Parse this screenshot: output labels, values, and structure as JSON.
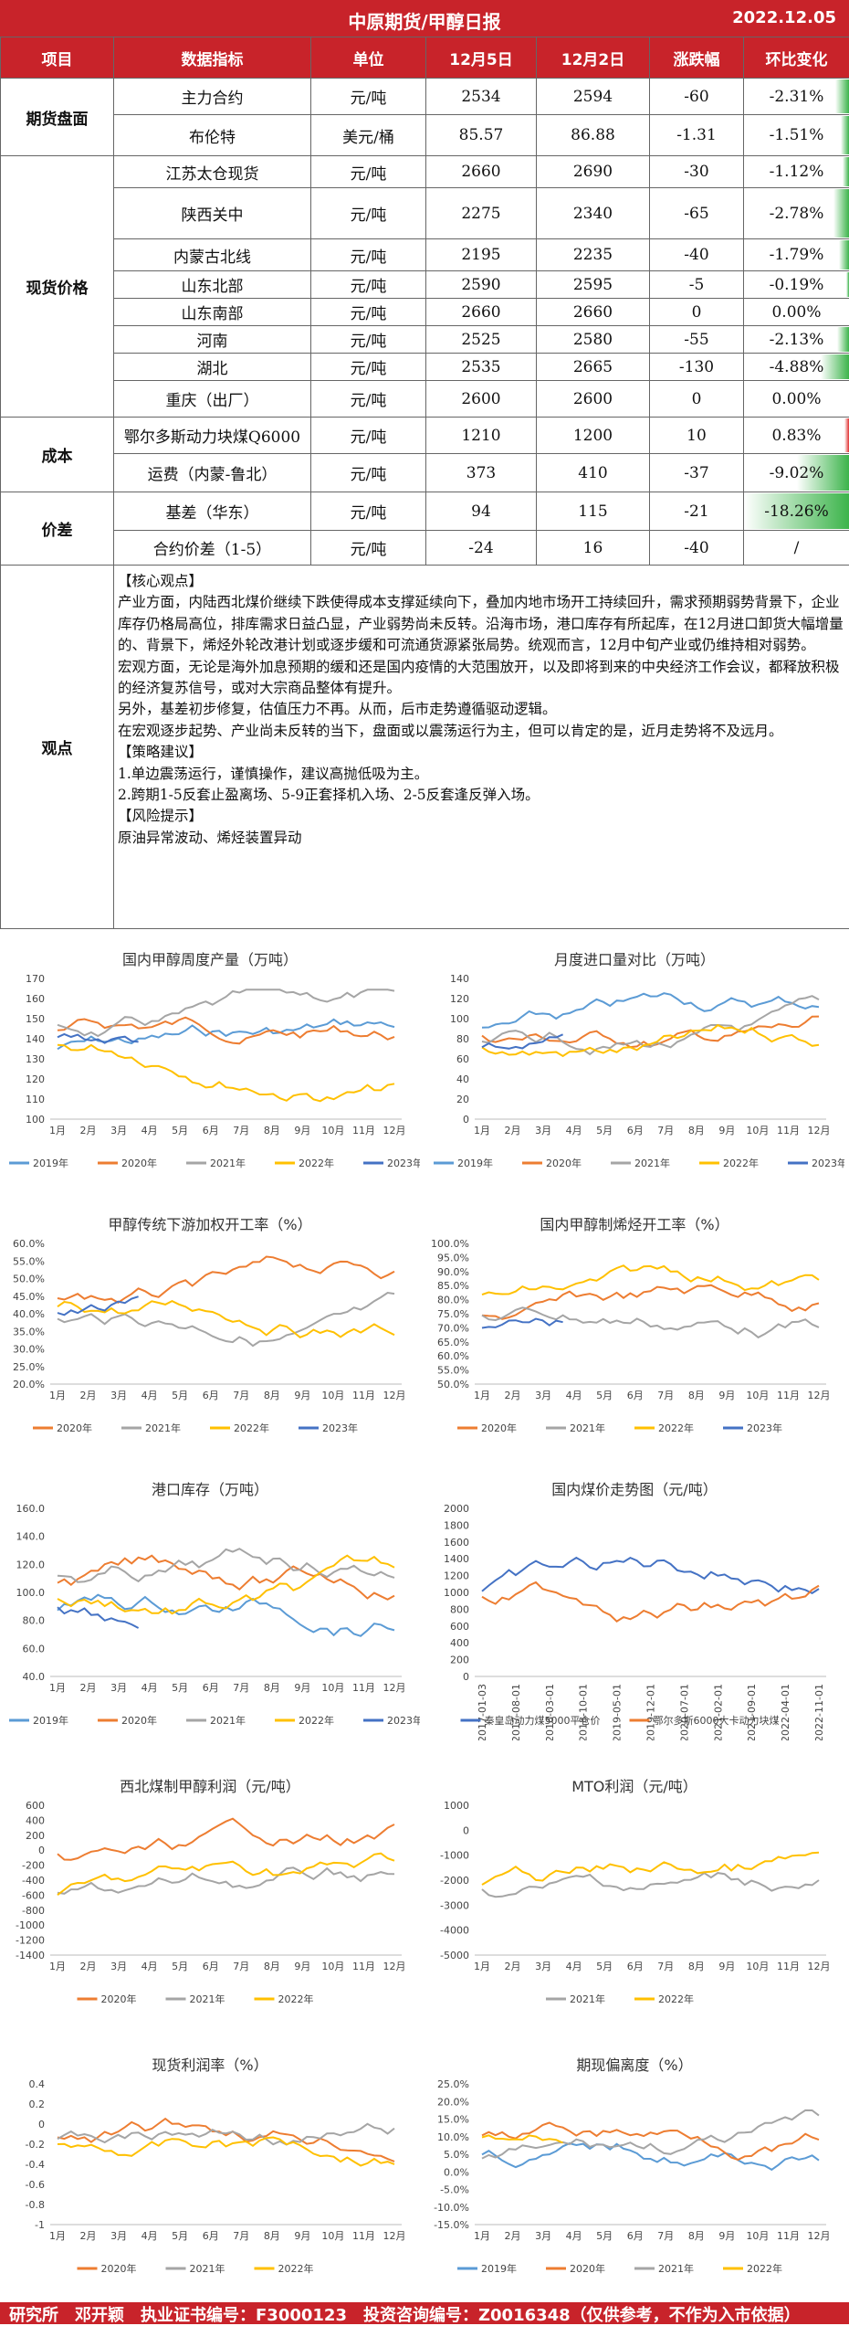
{
  "header": {
    "title": "中原期货/甲醇日报",
    "date": "2022.12.05"
  },
  "table": {
    "columns": [
      "项目",
      "数据指标",
      "单位",
      "12月5日",
      "12月2日",
      "涨跌幅",
      "环比变化"
    ],
    "rows": [
      {
        "metric": "主力合约",
        "unit": "元/吨",
        "d1": "2534",
        "d2": "2594",
        "chg": "-60",
        "pct": "-2.31%",
        "pctv": -2.31
      },
      {
        "metric": "布伦特",
        "unit": "美元/桶",
        "d1": "85.57",
        "d2": "86.88",
        "chg": "-1.31",
        "pct": "-1.51%",
        "pctv": -1.51
      },
      {
        "metric": "江苏太仓现货",
        "unit": "元/吨",
        "d1": "2660",
        "d2": "2690",
        "chg": "-30",
        "pct": "-1.12%",
        "pctv": -1.12
      },
      {
        "metric": "陕西关中",
        "unit": "元/吨",
        "d1": "2275",
        "d2": "2340",
        "chg": "-65",
        "pct": "-2.78%",
        "pctv": -2.78
      },
      {
        "metric": "内蒙古北线",
        "unit": "元/吨",
        "d1": "2195",
        "d2": "2235",
        "chg": "-40",
        "pct": "-1.79%",
        "pctv": -1.79
      },
      {
        "metric": "山东北部",
        "unit": "元/吨",
        "d1": "2590",
        "d2": "2595",
        "chg": "-5",
        "pct": "-0.19%",
        "pctv": -0.19
      },
      {
        "metric": "山东南部",
        "unit": "元/吨",
        "d1": "2660",
        "d2": "2660",
        "chg": "0",
        "pct": "0.00%",
        "pctv": 0
      },
      {
        "metric": "河南",
        "unit": "元/吨",
        "d1": "2525",
        "d2": "2580",
        "chg": "-55",
        "pct": "-2.13%",
        "pctv": -2.13
      },
      {
        "metric": "湖北",
        "unit": "元/吨",
        "d1": "2535",
        "d2": "2665",
        "chg": "-130",
        "pct": "-4.88%",
        "pctv": -4.88
      },
      {
        "metric": "重庆（出厂）",
        "unit": "元/吨",
        "d1": "2600",
        "d2": "2600",
        "chg": "0",
        "pct": "0.00%",
        "pctv": 0
      },
      {
        "metric": "鄂尔多斯动力块煤Q6000",
        "unit": "元/吨",
        "d1": "1210",
        "d2": "1200",
        "chg": "10",
        "pct": "0.83%",
        "pctv": 0.83
      },
      {
        "metric": "运费（内蒙-鲁北）",
        "unit": "元/吨",
        "d1": "373",
        "d2": "410",
        "chg": "-37",
        "pct": "-9.02%",
        "pctv": -9.02
      },
      {
        "metric": "基差（华东）",
        "unit": "元/吨",
        "d1": "94",
        "d2": "115",
        "chg": "-21",
        "pct": "-18.26%",
        "pctv": -18.26
      },
      {
        "metric": "合约价差（1-5）",
        "unit": "元/吨",
        "d1": "-24",
        "d2": "16",
        "chg": "-40",
        "pct": "/",
        "pctv": 0
      }
    ],
    "categories": {
      "futures": "期货盘面",
      "spot": "现货价格",
      "cost": "成本",
      "spread": "价差",
      "view": "观点"
    }
  },
  "view": {
    "lines": [
      "【核心观点】",
      "产业方面，内陆西北煤价继续下跌使得成本支撑延续向下，叠加内地市场开工持续回升，需求预期弱势背景下，企业库存仍格局高位，排库需求日益凸显，产业弱势尚未反转。沿海市场，港口库存有所起库，在12月进口卸货大幅增量的、背景下，烯烃外轮改港计划或逐步缓和可流通货源紧张局势。统观而言，12月中旬产业或仍维持相对弱势。",
      "宏观方面，无论是海外加息预期的缓和还是国内疫情的大范围放开，以及即将到来的中央经济工作会议，都释放积极的经济复苏信号，或对大宗商品整体有提升。",
      "另外，基差初步修复，估值压力不再。从而，后市走势遵循驱动逻辑。",
      "在宏观逐步起势、产业尚未反转的当下，盘面或以震荡运行为主，但可以肯定的是，近月走势将不及远月。",
      "【策略建议】",
      "1.单边震荡运行，谨慎操作，建议高抛低吸为主。",
      "2.跨期1-5反套止盈离场、5-9正套择机入场、2-5反套逢反弹入场。",
      "【风险提示】",
      "原油异常波动、烯烃装置异动"
    ]
  },
  "charts": [
    {
      "title": "国内甲醇周度产量（万吨）",
      "yticks": [
        "170",
        "160",
        "150",
        "140",
        "130",
        "120",
        "110",
        "100"
      ],
      "legend": [
        "2019年",
        "2020年",
        "2021年",
        "2022年",
        "2023年"
      ],
      "months": [
        "1月",
        "2月",
        "3月",
        "4月",
        "5月",
        "6月",
        "7月",
        "8月",
        "9月",
        "10月",
        "11月",
        "12月"
      ]
    },
    {
      "title": "月度进口量对比（万吨）",
      "yticks": [
        "140",
        "120",
        "100",
        "80",
        "60",
        "40",
        "20",
        "0"
      ],
      "legend": [
        "2019年",
        "2020年",
        "2021年",
        "2022年",
        "2023年"
      ],
      "months": [
        "1月",
        "2月",
        "3月",
        "4月",
        "5月",
        "6月",
        "7月",
        "8月",
        "9月",
        "10月",
        "11月",
        "12月"
      ]
    },
    {
      "title": "甲醇传统下游加权开工率（%）",
      "yticks": [
        "60.0%",
        "55.0%",
        "50.0%",
        "45.0%",
        "40.0%",
        "35.0%",
        "30.0%",
        "25.0%",
        "20.0%"
      ],
      "legend": [
        "2020年",
        "2021年",
        "2022年",
        "2023年"
      ],
      "months": [
        "1月",
        "2月",
        "3月",
        "4月",
        "5月",
        "6月",
        "7月",
        "8月",
        "9月",
        "10月",
        "11月",
        "12月"
      ]
    },
    {
      "title": "国内甲醇制烯烃开工率（%）",
      "yticks": [
        "100.0%",
        "95.0%",
        "90.0%",
        "85.0%",
        "80.0%",
        "75.0%",
        "70.0%",
        "65.0%",
        "60.0%",
        "55.0%",
        "50.0%"
      ],
      "legend": [
        "2020年",
        "2021年",
        "2022年",
        "2023年"
      ],
      "months": [
        "1月",
        "2月",
        "3月",
        "4月",
        "5月",
        "6月",
        "7月",
        "8月",
        "9月",
        "10月",
        "11月",
        "12月"
      ]
    },
    {
      "title": "港口库存（万吨）",
      "yticks": [
        "160.0",
        "140.0",
        "120.0",
        "100.0",
        "80.0",
        "60.0",
        "40.0"
      ],
      "legend": [
        "2019年",
        "2020年",
        "2021年",
        "2022年",
        "2023年"
      ],
      "months": [
        "1月",
        "2月",
        "3月",
        "4月",
        "5月",
        "6月",
        "7月",
        "8月",
        "9月",
        "10月",
        "11月",
        "12月"
      ]
    },
    {
      "title": "国内煤价走势图（元/吨）",
      "yticks": [
        "2000",
        "1800",
        "1600",
        "1400",
        "1200",
        "1000",
        "800",
        "600",
        "400",
        "200",
        "0"
      ],
      "legend": [
        "秦皇岛动力煤5000平仓价",
        "鄂尔多斯6000大卡动力块煤"
      ],
      "months": [
        "2017-01-03",
        "2017-08-01",
        "2018-03-01",
        "2018-10-01",
        "2019-05-01",
        "2019-12-01",
        "2020-07-01",
        "2021-02-01",
        "2021-09-01",
        "2022-04-01",
        "2022-11-01"
      ]
    },
    {
      "title": "西北煤制甲醇利润（元/吨）",
      "yticks": [
        "600",
        "400",
        "200",
        "0",
        "-200",
        "-400",
        "-600",
        "-800",
        "-1000",
        "-1200",
        "-1400"
      ],
      "legend": [
        "2020年",
        "2021年",
        "2022年"
      ],
      "months": [
        "1月",
        "2月",
        "3月",
        "4月",
        "5月",
        "6月",
        "7月",
        "8月",
        "9月",
        "10月",
        "11月",
        "12月"
      ]
    },
    {
      "title": "MTO利润（元/吨）",
      "yticks": [
        "1000",
        "0",
        "-1000",
        "-2000",
        "-3000",
        "-4000",
        "-5000"
      ],
      "legend": [
        "2021年",
        "2022年"
      ],
      "months": [
        "1月",
        "2月",
        "3月",
        "4月",
        "5月",
        "6月",
        "7月",
        "8月",
        "9月",
        "10月",
        "11月",
        "12月"
      ]
    },
    {
      "title": "现货利润率（%）",
      "yticks": [
        "0.4",
        "0.2",
        "0",
        "-0.2",
        "-0.4",
        "-0.6",
        "-0.8",
        "-1"
      ],
      "legend": [
        "2020年",
        "2021年",
        "2022年"
      ],
      "months": [
        "1月",
        "2月",
        "3月",
        "4月",
        "5月",
        "6月",
        "7月",
        "8月",
        "9月",
        "10月",
        "11月",
        "12月"
      ]
    },
    {
      "title": "期现偏离度（%）",
      "yticks": [
        "25.0%",
        "20.0%",
        "15.0%",
        "10.0%",
        "5.0%",
        "0.0%",
        "-5.0%",
        "-10.0%",
        "-15.0%"
      ],
      "legend": [
        "2019年",
        "2020年",
        "2021年",
        "2022年"
      ],
      "months": [
        "1月",
        "2月",
        "3月",
        "4月",
        "5月",
        "6月",
        "7月",
        "8月",
        "9月",
        "10月",
        "11月",
        "12月"
      ]
    }
  ],
  "series_colors": {
    "2019年": "#5b9bd5",
    "2020年": "#ed7d31",
    "2021年": "#a5a5a5",
    "2022年": "#ffc000",
    "2023年": "#4472c4"
  },
  "colors": {
    "header": "#c8232a",
    "neg_bar": "#3cb44b",
    "pos_bar": "#e03030"
  },
  "footer": {
    "text": "研究所　邓开颖　执业证书编号：F3000123　投资咨询编号：Z0016348（仅供参考，不作为入市依据）"
  }
}
